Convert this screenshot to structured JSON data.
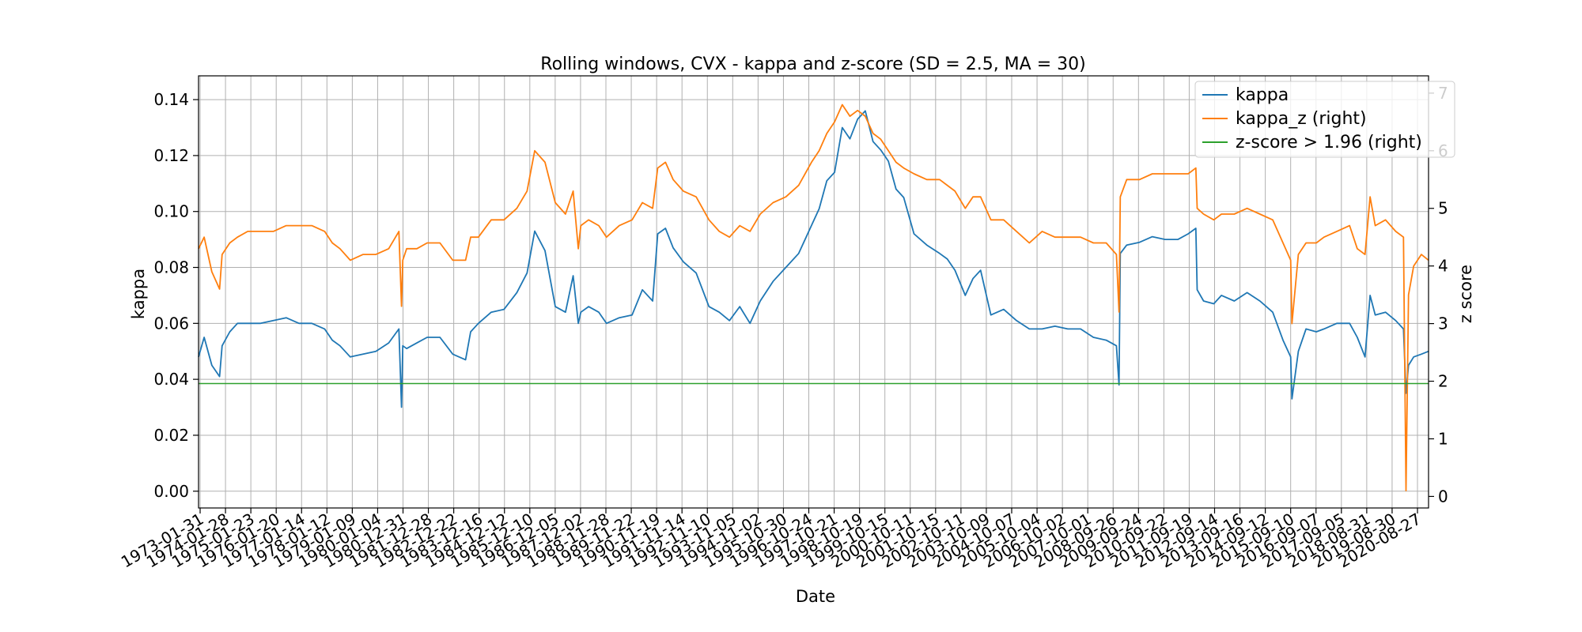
{
  "chart_data": {
    "type": "line",
    "title": "Rolling windows, CVX - kappa and z-score (SD = 2.5, MA = 30)",
    "xlabel": "Date",
    "ylabel": "kappa",
    "ylabel_right": "z score",
    "grid": true,
    "legend_position": "top-right",
    "x_tick_labels": [
      "1973-01-31",
      "1974-01-28",
      "1975-01-23",
      "1976-01-20",
      "1977-01-14",
      "1978-01-12",
      "1979-01-09",
      "1980-01-04",
      "1980-12-31",
      "1981-12-28",
      "1982-12-22",
      "1983-12-16",
      "1984-12-12",
      "1985-12-10",
      "1986-12-05",
      "1987-12-02",
      "1988-11-28",
      "1989-11-22",
      "1990-11-19",
      "1991-11-14",
      "1992-11-10",
      "1993-11-05",
      "1994-11-02",
      "1995-10-30",
      "1996-10-24",
      "1997-10-21",
      "1998-10-19",
      "1999-10-15",
      "2000-10-11",
      "2001-10-15",
      "2002-10-11",
      "2003-10-09",
      "2004-10-07",
      "2005-10-04",
      "2006-10-02",
      "2007-10-01",
      "2008-09-26",
      "2009-09-24",
      "2010-09-22",
      "2011-09-19",
      "2012-09-14",
      "2013-09-16",
      "2014-09-12",
      "2015-09-10",
      "2016-09-07",
      "2017-09-05",
      "2018-08-31",
      "2019-08-30",
      "2020-08-27"
    ],
    "x_range": [
      1973.08,
      2021.08
    ],
    "ylim": [
      -0.006,
      0.1485
    ],
    "y_ticks": [
      0.0,
      0.02,
      0.04,
      0.06,
      0.08,
      0.1,
      0.12,
      0.14
    ],
    "y_tick_labels": [
      "0.00",
      "0.02",
      "0.04",
      "0.06",
      "0.08",
      "0.10",
      "0.12",
      "0.14"
    ],
    "ylim_right": [
      -0.2,
      7.3
    ],
    "y_ticks_right": [
      0,
      1,
      2,
      3,
      4,
      5,
      6,
      7
    ],
    "y_tick_labels_right": [
      "0",
      "1",
      "2",
      "3",
      "4",
      "5",
      "6",
      "7"
    ],
    "series": [
      {
        "name": "kappa",
        "axis": "left",
        "color": "#1f77b4",
        "x": [
          1973.08,
          1973.3,
          1973.6,
          1973.9,
          1974.0,
          1974.3,
          1974.6,
          1975.0,
          1975.5,
          1976.0,
          1976.5,
          1977.0,
          1977.5,
          1978.0,
          1978.3,
          1978.6,
          1979.0,
          1979.5,
          1980.0,
          1980.5,
          1980.9,
          1981.0,
          1981.05,
          1981.2,
          1981.6,
          1982.0,
          1982.5,
          1983.0,
          1983.5,
          1983.7,
          1984.0,
          1984.5,
          1985.0,
          1985.5,
          1985.9,
          1986.2,
          1986.6,
          1987.0,
          1987.4,
          1987.7,
          1987.9,
          1988.0,
          1988.3,
          1988.7,
          1989.0,
          1989.5,
          1990.0,
          1990.4,
          1990.8,
          1991.0,
          1991.3,
          1991.6,
          1992.0,
          1992.5,
          1993.0,
          1993.4,
          1993.8,
          1994.2,
          1994.6,
          1995.0,
          1995.5,
          1996.0,
          1996.5,
          1997.0,
          1997.3,
          1997.6,
          1997.9,
          1998.2,
          1998.5,
          1998.8,
          1999.1,
          1999.4,
          1999.7,
          2000.0,
          2000.3,
          2000.6,
          2001.0,
          2001.5,
          2002.0,
          2002.3,
          2002.6,
          2003.0,
          2003.3,
          2003.6,
          2004.0,
          2004.5,
          2005.0,
          2005.5,
          2006.0,
          2006.5,
          2007.0,
          2007.5,
          2008.0,
          2008.5,
          2008.9,
          2009.0,
          2009.05,
          2009.3,
          2009.8,
          2010.3,
          2010.8,
          2011.3,
          2011.7,
          2012.0,
          2012.05,
          2012.3,
          2012.7,
          2013.0,
          2013.5,
          2014.0,
          2014.5,
          2015.0,
          2015.4,
          2015.7,
          2015.75,
          2016.0,
          2016.3,
          2016.7,
          2017.0,
          2017.5,
          2018.0,
          2018.3,
          2018.6,
          2018.8,
          2019.0,
          2019.4,
          2019.8,
          2020.1,
          2020.2,
          2020.3,
          2020.5,
          2020.8,
          2021.08
        ],
        "values": [
          0.048,
          0.055,
          0.045,
          0.041,
          0.052,
          0.057,
          0.06,
          0.06,
          0.06,
          0.061,
          0.062,
          0.06,
          0.06,
          0.058,
          0.054,
          0.052,
          0.048,
          0.049,
          0.05,
          0.053,
          0.058,
          0.03,
          0.052,
          0.051,
          0.053,
          0.055,
          0.055,
          0.049,
          0.047,
          0.057,
          0.06,
          0.064,
          0.065,
          0.071,
          0.078,
          0.093,
          0.086,
          0.066,
          0.064,
          0.077,
          0.06,
          0.064,
          0.066,
          0.064,
          0.06,
          0.062,
          0.063,
          0.072,
          0.068,
          0.092,
          0.094,
          0.087,
          0.082,
          0.078,
          0.066,
          0.064,
          0.061,
          0.066,
          0.06,
          0.068,
          0.075,
          0.08,
          0.085,
          0.095,
          0.101,
          0.111,
          0.114,
          0.13,
          0.126,
          0.133,
          0.136,
          0.125,
          0.122,
          0.118,
          0.108,
          0.105,
          0.092,
          0.088,
          0.085,
          0.083,
          0.079,
          0.07,
          0.076,
          0.079,
          0.063,
          0.065,
          0.061,
          0.058,
          0.058,
          0.059,
          0.058,
          0.058,
          0.055,
          0.054,
          0.052,
          0.038,
          0.085,
          0.088,
          0.089,
          0.091,
          0.09,
          0.09,
          0.092,
          0.094,
          0.072,
          0.068,
          0.067,
          0.07,
          0.068,
          0.071,
          0.068,
          0.064,
          0.054,
          0.048,
          0.033,
          0.05,
          0.058,
          0.057,
          0.058,
          0.06,
          0.06,
          0.055,
          0.048,
          0.07,
          0.063,
          0.064,
          0.061,
          0.058,
          0.035,
          0.045,
          0.048,
          0.049,
          0.05
        ]
      },
      {
        "name": "kappa_z (right)",
        "axis": "right",
        "color": "#ff7f0e",
        "x": [
          1973.08,
          1973.3,
          1973.6,
          1973.9,
          1974.0,
          1974.3,
          1974.6,
          1975.0,
          1975.5,
          1976.0,
          1976.5,
          1977.0,
          1977.5,
          1978.0,
          1978.3,
          1978.6,
          1979.0,
          1979.5,
          1980.0,
          1980.5,
          1980.9,
          1981.0,
          1981.05,
          1981.2,
          1981.6,
          1982.0,
          1982.5,
          1983.0,
          1983.5,
          1983.7,
          1984.0,
          1984.5,
          1985.0,
          1985.5,
          1985.9,
          1986.2,
          1986.6,
          1987.0,
          1987.4,
          1987.7,
          1987.9,
          1988.0,
          1988.3,
          1988.7,
          1989.0,
          1989.5,
          1990.0,
          1990.4,
          1990.8,
          1991.0,
          1991.3,
          1991.6,
          1992.0,
          1992.5,
          1993.0,
          1993.4,
          1993.8,
          1994.2,
          1994.6,
          1995.0,
          1995.5,
          1996.0,
          1996.5,
          1997.0,
          1997.3,
          1997.6,
          1997.9,
          1998.2,
          1998.5,
          1998.8,
          1999.1,
          1999.4,
          1999.7,
          2000.0,
          2000.3,
          2000.6,
          2001.0,
          2001.5,
          2002.0,
          2002.3,
          2002.6,
          2003.0,
          2003.3,
          2003.6,
          2004.0,
          2004.5,
          2005.0,
          2005.5,
          2006.0,
          2006.5,
          2007.0,
          2007.5,
          2008.0,
          2008.5,
          2008.9,
          2009.0,
          2009.05,
          2009.3,
          2009.8,
          2010.3,
          2010.8,
          2011.3,
          2011.7,
          2012.0,
          2012.05,
          2012.3,
          2012.7,
          2013.0,
          2013.5,
          2014.0,
          2014.5,
          2015.0,
          2015.4,
          2015.7,
          2015.75,
          2016.0,
          2016.3,
          2016.7,
          2017.0,
          2017.5,
          2018.0,
          2018.3,
          2018.6,
          2018.8,
          2019.0,
          2019.4,
          2019.8,
          2020.1,
          2020.2,
          2020.3,
          2020.5,
          2020.8,
          2021.08
        ],
        "values": [
          4.3,
          4.5,
          3.9,
          3.6,
          4.2,
          4.4,
          4.5,
          4.6,
          4.6,
          4.6,
          4.7,
          4.7,
          4.7,
          4.6,
          4.4,
          4.3,
          4.1,
          4.2,
          4.2,
          4.3,
          4.6,
          3.3,
          4.1,
          4.3,
          4.3,
          4.4,
          4.4,
          4.1,
          4.1,
          4.5,
          4.5,
          4.8,
          4.8,
          5.0,
          5.3,
          6.0,
          5.8,
          5.1,
          4.9,
          5.3,
          4.3,
          4.7,
          4.8,
          4.7,
          4.5,
          4.7,
          4.8,
          5.1,
          5.0,
          5.7,
          5.8,
          5.5,
          5.3,
          5.2,
          4.8,
          4.6,
          4.5,
          4.7,
          4.6,
          4.9,
          5.1,
          5.2,
          5.4,
          5.8,
          6.0,
          6.3,
          6.5,
          6.8,
          6.6,
          6.7,
          6.6,
          6.3,
          6.2,
          6.0,
          5.8,
          5.7,
          5.6,
          5.5,
          5.5,
          5.4,
          5.3,
          5.0,
          5.2,
          5.2,
          4.8,
          4.8,
          4.6,
          4.4,
          4.6,
          4.5,
          4.5,
          4.5,
          4.4,
          4.4,
          4.2,
          3.2,
          5.2,
          5.5,
          5.5,
          5.6,
          5.6,
          5.6,
          5.6,
          5.7,
          5.0,
          4.9,
          4.8,
          4.9,
          4.9,
          5.0,
          4.9,
          4.8,
          4.4,
          4.1,
          3.0,
          4.2,
          4.4,
          4.4,
          4.5,
          4.6,
          4.7,
          4.3,
          4.2,
          5.2,
          4.7,
          4.8,
          4.6,
          4.5,
          0.1,
          3.5,
          4.0,
          4.2,
          4.1
        ]
      },
      {
        "name": "z-score > 1.96 (right)",
        "axis": "right",
        "color": "#2ca02c",
        "x": [
          1973.08,
          2021.08
        ],
        "values": [
          1.96,
          1.96
        ]
      }
    ]
  }
}
